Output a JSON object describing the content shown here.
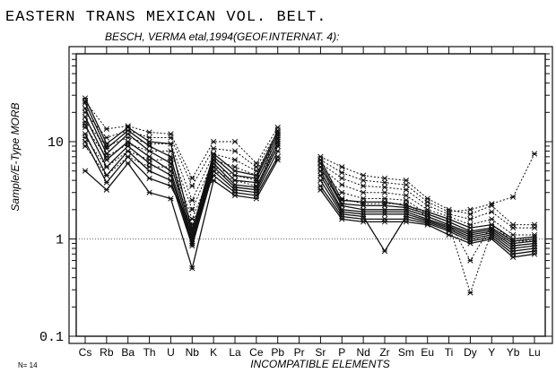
{
  "chart_data": {
    "type": "line",
    "title": "EASTERN TRANS MEXICAN VOL. BELT.",
    "subtitle": "BESCH, VERMA etal,1994(GEOF.INTERNAT. 4):",
    "xlabel": "INCOMPATIBLE ELEMENTS",
    "ylabel": "Sample/E-Type MORB",
    "ylim": [
      0.1,
      80
    ],
    "y_scale": "log",
    "reference_line": 1,
    "y_ticks": [
      "10",
      "1",
      "0.1"
    ],
    "sample_count_label": "N= 14",
    "categories": [
      "Cs",
      "Rb",
      "Ba",
      "Th",
      "U",
      "Nb",
      "K",
      "La",
      "Ce",
      "Pb",
      "Pr",
      "Sr",
      "P",
      "Nd",
      "Zr",
      "Sm",
      "Eu",
      "Ti",
      "Dy",
      "Y",
      "Yb",
      "Lu"
    ],
    "series": [
      {
        "style": "solid",
        "values": [
          28,
          9.5,
          14,
          10,
          9.5,
          1.2,
          7.5,
          5,
          4.5,
          13,
          null,
          6.5,
          2.5,
          2.4,
          2.4,
          2.2,
          1.9,
          1.6,
          1.3,
          1.4,
          1.0,
          1.05
        ]
      },
      {
        "style": "solid",
        "values": [
          25,
          8.5,
          13,
          9,
          7,
          1.1,
          7,
          4.5,
          4.2,
          12,
          null,
          6,
          2.3,
          2.2,
          2.2,
          2.1,
          1.8,
          1.5,
          1.2,
          1.3,
          0.95,
          1.0
        ]
      },
      {
        "style": "solid",
        "values": [
          22,
          7.5,
          12,
          8,
          6,
          1.0,
          6.5,
          4,
          3.8,
          11,
          null,
          5.5,
          2.2,
          2.0,
          2.0,
          2.0,
          1.7,
          1.4,
          1.15,
          1.25,
          0.9,
          0.95
        ]
      },
      {
        "style": "solid",
        "values": [
          18,
          6.5,
          10,
          7,
          5,
          0.95,
          6,
          3.6,
          3.4,
          10,
          null,
          5,
          2.0,
          1.9,
          1.9,
          1.9,
          1.6,
          1.35,
          1.1,
          1.2,
          0.85,
          0.9
        ]
      },
      {
        "style": "solid",
        "values": [
          15,
          5.5,
          9,
          6,
          4.5,
          0.9,
          5.5,
          3.4,
          3.2,
          9,
          null,
          4.5,
          1.9,
          1.8,
          1.8,
          1.8,
          1.55,
          1.3,
          1.05,
          1.15,
          0.8,
          0.85
        ]
      },
      {
        "style": "solid",
        "values": [
          12,
          4.5,
          8,
          5,
          4,
          0.85,
          5,
          3.2,
          3.0,
          8,
          null,
          4,
          1.8,
          1.7,
          0.75,
          1.7,
          1.5,
          1.25,
          1.0,
          1.1,
          0.75,
          0.8
        ]
      },
      {
        "style": "solid",
        "values": [
          10,
          3.8,
          7,
          4.2,
          3.5,
          1.3,
          4.5,
          3.0,
          2.8,
          7,
          null,
          3.5,
          1.7,
          1.6,
          1.6,
          1.6,
          1.45,
          1.2,
          0.95,
          1.05,
          0.7,
          0.75
        ]
      },
      {
        "style": "solid",
        "values": [
          5,
          3.2,
          6,
          3.0,
          2.6,
          0.5,
          4.0,
          2.8,
          2.6,
          6.5,
          null,
          3.2,
          1.6,
          1.5,
          1.5,
          1.5,
          1.4,
          1.1,
          0.9,
          1.0,
          0.65,
          0.7
        ]
      },
      {
        "style": "dotted",
        "values": [
          26,
          13.5,
          14.5,
          12.5,
          12,
          4.2,
          10,
          10,
          6,
          14,
          null,
          7,
          5.5,
          4.5,
          4.2,
          4,
          2.6,
          2.0,
          1.8,
          2.2,
          1.4,
          1.4
        ]
      },
      {
        "style": "dotted",
        "values": [
          20,
          11,
          13,
          11,
          11,
          3.5,
          8.5,
          8,
          5.5,
          12.5,
          null,
          6.5,
          4.8,
          4.0,
          3.8,
          3.6,
          2.4,
          1.9,
          2.0,
          2.3,
          2.7,
          7.5
        ]
      },
      {
        "style": "dotted",
        "values": [
          16,
          9,
          11,
          9.5,
          9.5,
          2.5,
          7.5,
          6.5,
          5,
          11.5,
          null,
          6,
          4.2,
          3.5,
          3.4,
          3.2,
          2.2,
          1.8,
          1.6,
          1.9,
          1.3,
          1.3
        ]
      },
      {
        "style": "dotted",
        "values": [
          14,
          7,
          9.5,
          8,
          8,
          2.0,
          6.5,
          5.5,
          4.5,
          10.5,
          null,
          5.5,
          3.6,
          3.0,
          3.0,
          2.8,
          2.0,
          1.7,
          1.4,
          1.6,
          1.1,
          1.1
        ]
      },
      {
        "style": "dotted",
        "values": [
          11,
          5.5,
          8,
          6.5,
          6.5,
          1.6,
          5.5,
          4.5,
          4.0,
          9.5,
          null,
          5,
          3.0,
          2.6,
          2.6,
          2.5,
          1.8,
          1.5,
          0.6,
          1.4,
          0.95,
          0.95
        ]
      },
      {
        "style": "dotted",
        "values": [
          9,
          4.5,
          7,
          5.5,
          5.5,
          1.4,
          5,
          4.0,
          3.5,
          9,
          null,
          4.5,
          2.6,
          2.3,
          2.3,
          2.3,
          1.7,
          1.4,
          0.28,
          1.2,
          0.85,
          0.9
        ]
      }
    ]
  }
}
